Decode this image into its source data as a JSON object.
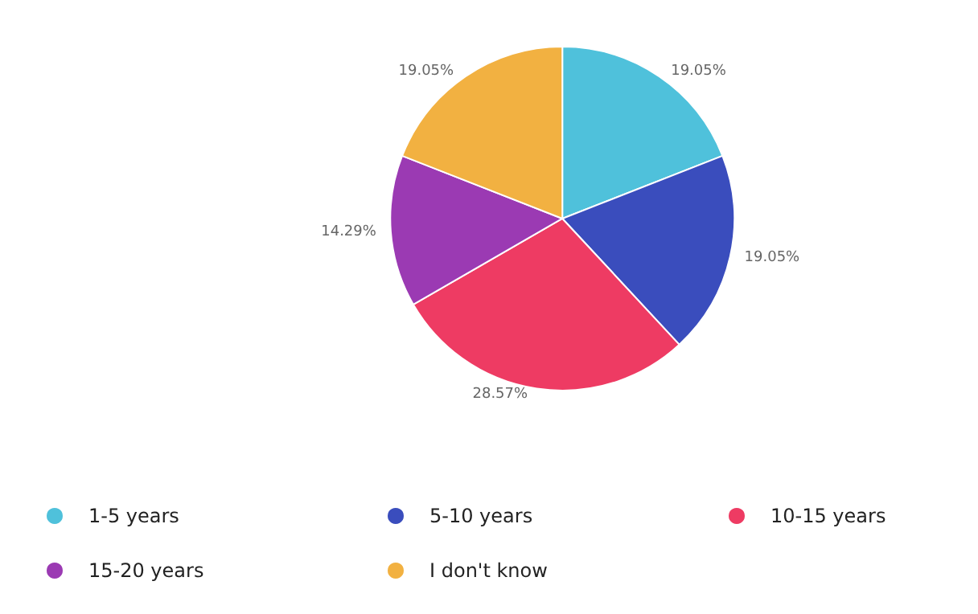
{
  "chart_data": {
    "type": "pie",
    "categories": [
      "1-5 years",
      "5-10 years",
      "10-15 years",
      "15-20 years",
      "I don't know"
    ],
    "values": [
      19.05,
      19.05,
      28.57,
      14.29,
      19.05
    ],
    "colors": [
      "#4fc1db",
      "#3a4dbd",
      "#ee3b63",
      "#9b3ab3",
      "#f2b141"
    ],
    "value_labels": [
      "19.05%",
      "19.05%",
      "28.57%",
      "14.29%",
      "19.05%"
    ],
    "legend": "bottom"
  }
}
